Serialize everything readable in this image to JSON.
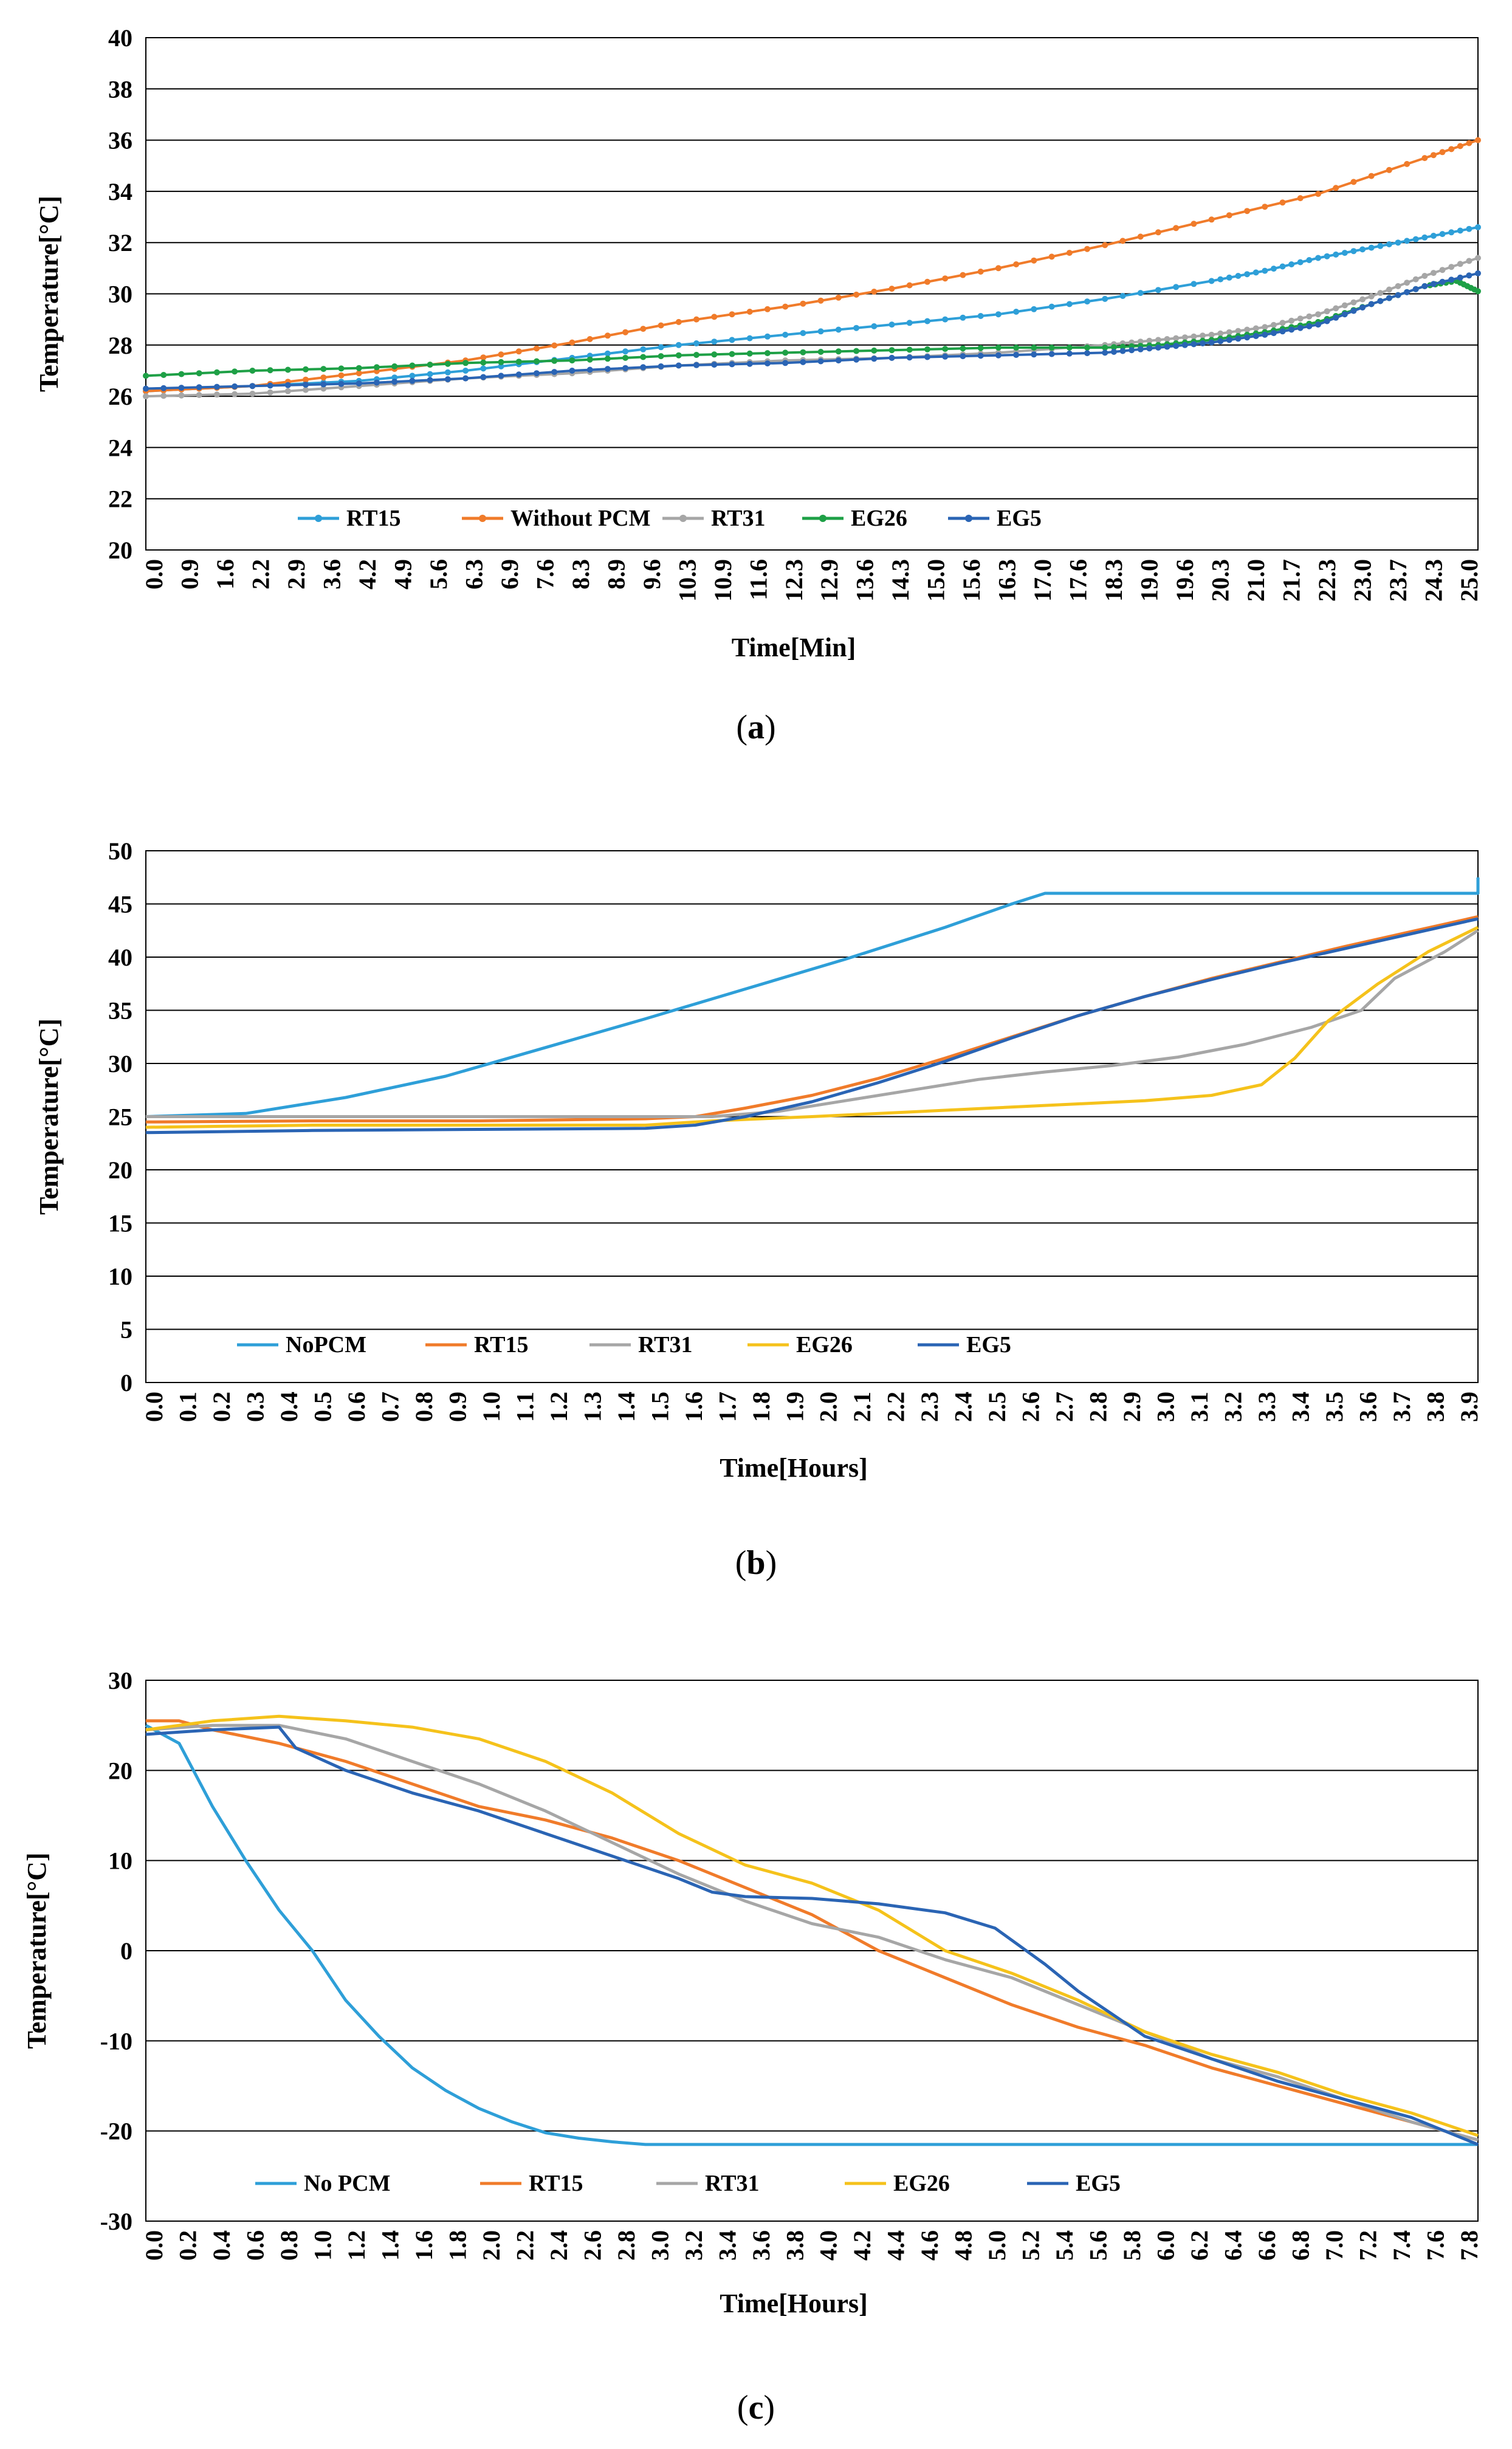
{
  "chart_data": [
    {
      "id": "a",
      "type": "line",
      "caption": "(a)",
      "caption_letter": "a",
      "xlabel": "Time[Min]",
      "ylabel": "Temperature[°C]",
      "ylim": [
        20,
        40
      ],
      "ytick_labels": [
        "20",
        "22",
        "24",
        "26",
        "28",
        "30",
        "32",
        "34",
        "36",
        "38",
        "40"
      ],
      "x_tick_labels": [
        "0.0",
        "0.9",
        "1.6",
        "2.2",
        "2.9",
        "3.6",
        "4.2",
        "4.9",
        "5.6",
        "6.3",
        "6.9",
        "7.6",
        "8.3",
        "8.9",
        "9.6",
        "10.3",
        "10.9",
        "11.6",
        "12.3",
        "12.9",
        "13.6",
        "14.3",
        "15.0",
        "15.6",
        "16.3",
        "17.0",
        "17.6",
        "18.3",
        "19.0",
        "19.6",
        "20.3",
        "21.0",
        "21.7",
        "22.3",
        "23.0",
        "23.7",
        "24.3",
        "25.0"
      ],
      "xlim": [
        0,
        25
      ],
      "grid": "horizontal",
      "legend_position": "bottom-left inside",
      "markers": true,
      "series": [
        {
          "name": "RT15",
          "color": "#2e9fd8",
          "x": [
            0,
            2,
            4,
            6,
            8,
            10,
            12,
            14,
            16,
            18,
            20,
            21,
            22,
            23,
            24,
            25
          ],
          "y": [
            26.2,
            26.4,
            26.6,
            27.0,
            27.5,
            28.0,
            28.4,
            28.8,
            29.2,
            29.8,
            30.5,
            30.9,
            31.4,
            31.8,
            32.2,
            32.6
          ]
        },
        {
          "name": "Without PCM",
          "color": "#f07b2a",
          "x": [
            0,
            2,
            4,
            6,
            8,
            10,
            12,
            14,
            16,
            18,
            20,
            22,
            24,
            25
          ],
          "y": [
            26.2,
            26.4,
            26.9,
            27.4,
            28.1,
            28.9,
            29.5,
            30.2,
            31.0,
            31.9,
            32.9,
            33.9,
            35.3,
            36.0
          ]
        },
        {
          "name": "RT31",
          "color": "#a6a6a6",
          "x": [
            0,
            2,
            4,
            6,
            8,
            10,
            12,
            14,
            16,
            18,
            19,
            20,
            21,
            22,
            23,
            24,
            25
          ],
          "y": [
            26.0,
            26.1,
            26.4,
            26.7,
            26.9,
            27.2,
            27.4,
            27.5,
            27.7,
            28.0,
            28.2,
            28.4,
            28.7,
            29.2,
            29.9,
            30.7,
            31.4
          ]
        },
        {
          "name": "EG26",
          "color": "#1ea046",
          "x": [
            0,
            2,
            4,
            6,
            8,
            10,
            12,
            14,
            16,
            18,
            19,
            20,
            21,
            22,
            23,
            24,
            24.6,
            25
          ],
          "y": [
            26.8,
            27.0,
            27.1,
            27.3,
            27.4,
            27.6,
            27.7,
            27.8,
            27.9,
            27.9,
            28.0,
            28.2,
            28.5,
            28.9,
            29.6,
            30.3,
            30.5,
            30.1
          ]
        },
        {
          "name": "EG5",
          "color": "#2a64b4",
          "x": [
            0,
            2,
            4,
            6,
            8,
            10,
            12,
            14,
            16,
            18,
            19,
            20,
            21,
            22,
            23,
            24,
            25
          ],
          "y": [
            26.3,
            26.4,
            26.5,
            26.7,
            27.0,
            27.2,
            27.3,
            27.5,
            27.6,
            27.7,
            27.9,
            28.1,
            28.4,
            28.8,
            29.6,
            30.3,
            30.8
          ]
        }
      ]
    },
    {
      "id": "b",
      "type": "line",
      "caption": "(b)",
      "caption_letter": "b",
      "xlabel": "Time[Hours]",
      "ylabel": "Temperature[°C]",
      "ylim": [
        0,
        50
      ],
      "ytick_labels": [
        "0",
        "5",
        "10",
        "15",
        "20",
        "25",
        "30",
        "35",
        "40",
        "45",
        "50"
      ],
      "x_tick_labels": [
        "0.0",
        "0.1",
        "0.2",
        "0.3",
        "0.4",
        "0.5",
        "0.6",
        "0.7",
        "0.8",
        "0.9",
        "1.0",
        "1.1",
        "1.2",
        "1.3",
        "1.4",
        "1.5",
        "1.6",
        "1.7",
        "1.8",
        "1.9",
        "2.0",
        "2.1",
        "2.2",
        "2.3",
        "2.4",
        "2.5",
        "2.6",
        "2.7",
        "2.8",
        "2.9",
        "3.0",
        "3.1",
        "3.2",
        "3.3",
        "3.4",
        "3.5",
        "3.6",
        "3.7",
        "3.8",
        "3.9"
      ],
      "xlim": [
        0,
        4.0
      ],
      "grid": "horizontal",
      "legend_position": "bottom-left inside",
      "markers": false,
      "series": [
        {
          "name": "NoPCM",
          "color": "#2e9fd8",
          "x": [
            0,
            0.3,
            0.6,
            0.9,
            1.2,
            1.5,
            1.8,
            2.1,
            2.4,
            2.6,
            2.7,
            3.0,
            3.5,
            4.0,
            4.0
          ],
          "y": [
            25,
            25.3,
            26.8,
            28.8,
            31.5,
            34.2,
            37.0,
            39.8,
            42.8,
            45.0,
            46.0,
            46.0,
            46.0,
            46.0,
            47.5
          ]
        },
        {
          "name": "RT15",
          "color": "#f07b2a",
          "x": [
            0,
            0.5,
            1.0,
            1.5,
            1.65,
            1.8,
            2.0,
            2.2,
            2.4,
            2.6,
            2.8,
            3.0,
            3.2,
            3.4,
            3.6,
            3.8,
            4.0
          ],
          "y": [
            24.5,
            24.6,
            24.6,
            24.8,
            25.0,
            25.8,
            27.0,
            28.6,
            30.5,
            32.5,
            34.5,
            36.3,
            38.0,
            39.5,
            41.0,
            42.4,
            43.8
          ]
        },
        {
          "name": "RT31",
          "color": "#a6a6a6",
          "x": [
            0,
            0.5,
            1.0,
            1.5,
            1.7,
            1.9,
            2.1,
            2.3,
            2.5,
            2.7,
            2.9,
            3.1,
            3.3,
            3.5,
            3.65,
            3.75,
            3.9,
            4.0
          ],
          "y": [
            25,
            25,
            25,
            25,
            25,
            25.5,
            26.5,
            27.5,
            28.5,
            29.2,
            29.8,
            30.6,
            31.8,
            33.4,
            35.0,
            38.0,
            40.5,
            42.5
          ]
        },
        {
          "name": "EG26",
          "color": "#f5c21b",
          "x": [
            0,
            0.5,
            1.0,
            1.5,
            1.7,
            2.0,
            2.4,
            2.8,
            3.0,
            3.2,
            3.35,
            3.45,
            3.55,
            3.7,
            3.85,
            4.0
          ],
          "y": [
            24.0,
            24.2,
            24.2,
            24.2,
            24.6,
            25.0,
            25.6,
            26.2,
            26.5,
            27.0,
            28.0,
            30.5,
            34.0,
            37.5,
            40.5,
            42.8
          ]
        },
        {
          "name": "EG5",
          "color": "#2a64b4",
          "x": [
            0,
            0.5,
            1.0,
            1.5,
            1.65,
            1.8,
            2.0,
            2.2,
            2.4,
            2.6,
            2.8,
            3.0,
            3.2,
            3.4,
            3.6,
            3.8,
            4.0
          ],
          "y": [
            23.5,
            23.7,
            23.8,
            23.9,
            24.2,
            25.0,
            26.4,
            28.2,
            30.2,
            32.4,
            34.5,
            36.3,
            37.9,
            39.4,
            40.8,
            42.2,
            43.6
          ]
        }
      ]
    },
    {
      "id": "c",
      "type": "line",
      "caption": "(c)",
      "caption_letter": "c",
      "xlabel": "Time[Hours]",
      "ylabel": "Temperature[°C]",
      "ylim": [
        -30,
        30
      ],
      "ytick_labels": [
        "-30",
        "-20",
        "-10",
        "0",
        "10",
        "20",
        "30"
      ],
      "x_tick_labels": [
        "0.0",
        "0.2",
        "0.4",
        "0.6",
        "0.8",
        "1.0",
        "1.2",
        "1.4",
        "1.6",
        "1.8",
        "2.0",
        "2.2",
        "2.4",
        "2.6",
        "2.8",
        "3.0",
        "3.2",
        "3.4",
        "3.6",
        "3.8",
        "4.0",
        "4.2",
        "4.4",
        "4.6",
        "4.8",
        "5.0",
        "5.2",
        "5.4",
        "5.6",
        "5.8",
        "6.0",
        "6.2",
        "6.4",
        "6.6",
        "6.8",
        "7.0",
        "7.2",
        "7.4",
        "7.6",
        "7.8"
      ],
      "xlim": [
        0,
        8.0
      ],
      "grid": "horizontal",
      "legend_position": "bottom-left inside",
      "markers": false,
      "series": [
        {
          "name": "No PCM",
          "color": "#2e9fd8",
          "x": [
            0,
            0.2,
            0.4,
            0.6,
            0.8,
            1.0,
            1.2,
            1.4,
            1.6,
            1.8,
            2.0,
            2.2,
            2.4,
            2.6,
            2.8,
            3.0,
            4.0,
            5.0,
            6.0,
            7.0,
            8.0
          ],
          "y": [
            25,
            23,
            16,
            10,
            4.5,
            0,
            -5.5,
            -9.5,
            -13,
            -15.5,
            -17.5,
            -19,
            -20.2,
            -20.8,
            -21.2,
            -21.5,
            -21.5,
            -21.5,
            -21.5,
            -21.5,
            -21.5
          ]
        },
        {
          "name": "RT15",
          "color": "#f07b2a",
          "x": [
            0,
            0.2,
            0.4,
            0.8,
            1.2,
            1.6,
            2.0,
            2.4,
            2.8,
            3.2,
            3.6,
            4.0,
            4.4,
            4.8,
            5.2,
            5.6,
            6.0,
            6.4,
            6.8,
            7.2,
            7.6,
            8.0
          ],
          "y": [
            25.5,
            25.5,
            24.5,
            23,
            21,
            18.5,
            16,
            14.5,
            12.5,
            10,
            7,
            4,
            0,
            -3,
            -6,
            -8.5,
            -10.5,
            -13,
            -15,
            -17,
            -19,
            -21
          ]
        },
        {
          "name": "RT31",
          "color": "#a6a6a6",
          "x": [
            0,
            0.4,
            0.8,
            1.2,
            1.6,
            2.0,
            2.4,
            2.8,
            3.2,
            3.6,
            4.0,
            4.4,
            4.8,
            5.2,
            5.6,
            6.0,
            6.4,
            6.8,
            7.2,
            7.6,
            8.0
          ],
          "y": [
            24.5,
            25,
            25,
            23.5,
            21,
            18.5,
            15.5,
            12,
            8.5,
            5.5,
            3,
            1.5,
            -1,
            -3,
            -6,
            -9,
            -12,
            -14,
            -16.5,
            -19,
            -21
          ]
        },
        {
          "name": "EG26",
          "color": "#f5c21b",
          "x": [
            0,
            0.4,
            0.8,
            1.2,
            1.6,
            2.0,
            2.4,
            2.8,
            3.2,
            3.6,
            4.0,
            4.4,
            4.8,
            5.2,
            5.6,
            6.0,
            6.4,
            6.8,
            7.2,
            7.6,
            8.0
          ],
          "y": [
            24.5,
            25.5,
            26,
            25.5,
            24.8,
            23.5,
            21,
            17.5,
            13,
            9.5,
            7.5,
            4.5,
            0,
            -2.5,
            -5.5,
            -9,
            -11.5,
            -13.5,
            -16,
            -18,
            -20.5
          ]
        },
        {
          "name": "EG5",
          "color": "#2a64b4",
          "x": [
            0,
            0.4,
            0.8,
            0.9,
            1.2,
            1.6,
            2.0,
            2.4,
            2.8,
            3.2,
            3.4,
            3.6,
            4.0,
            4.4,
            4.8,
            5.1,
            5.4,
            5.6,
            5.8,
            6.0,
            6.4,
            6.8,
            7.2,
            7.6,
            8.0
          ],
          "y": [
            24,
            24.5,
            24.8,
            22.5,
            20,
            17.5,
            15.5,
            13,
            10.5,
            8,
            6.5,
            6,
            5.8,
            5.2,
            4.2,
            2.5,
            -1.5,
            -4.5,
            -7,
            -9.5,
            -12,
            -14.5,
            -16.5,
            -18.5,
            -21.5
          ]
        }
      ]
    }
  ]
}
